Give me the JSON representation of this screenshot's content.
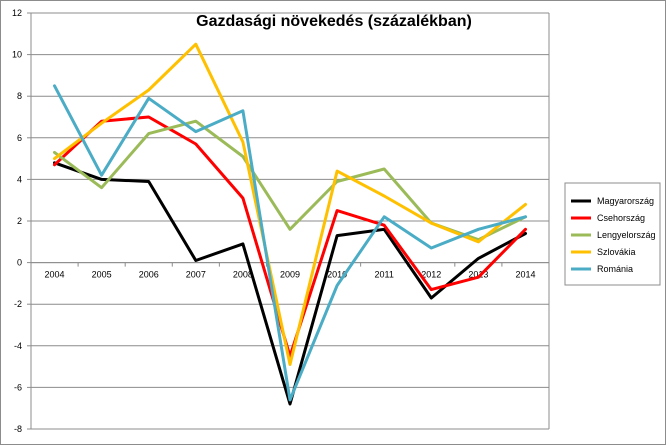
{
  "chart_data": {
    "type": "line",
    "title": "Gazdasági növekedés (százalékban)",
    "xlabel": "",
    "ylabel": "",
    "x": [
      "2004",
      "2005",
      "2006",
      "2007",
      "2008",
      "2009",
      "2010",
      "2011",
      "2012",
      "2013",
      "2014"
    ],
    "ylim": [
      -8,
      12
    ],
    "y_ticks": [
      "-8",
      "-6",
      "-4",
      "-2",
      "0",
      "2",
      "4",
      "6",
      "8",
      "10",
      "12"
    ],
    "grid": true,
    "legend_position": "right",
    "series": [
      {
        "name": "Magyarország",
        "color": "#000000",
        "values": [
          4.8,
          4.0,
          3.9,
          0.1,
          0.9,
          -6.8,
          1.3,
          1.6,
          -1.7,
          0.2,
          1.4
        ]
      },
      {
        "name": "Csehország",
        "color": "#ff0000",
        "values": [
          4.7,
          6.8,
          7.0,
          5.7,
          3.1,
          -4.5,
          2.5,
          1.8,
          -1.3,
          -0.7,
          1.6
        ]
      },
      {
        "name": "Lengyelország",
        "color": "#9bbb59",
        "values": [
          5.3,
          3.6,
          6.2,
          6.8,
          5.1,
          1.6,
          3.9,
          4.5,
          1.9,
          1.1,
          2.2
        ]
      },
      {
        "name": "Szlovákia",
        "color": "#ffc000",
        "values": [
          5.0,
          6.7,
          8.3,
          10.5,
          5.8,
          -4.9,
          4.4,
          3.2,
          1.9,
          1.0,
          2.8
        ]
      },
      {
        "name": "Románia",
        "color": "#4bacc6",
        "values": [
          8.5,
          4.2,
          7.9,
          6.3,
          7.3,
          -6.6,
          -1.1,
          2.2,
          0.7,
          1.6,
          2.2
        ]
      }
    ]
  }
}
